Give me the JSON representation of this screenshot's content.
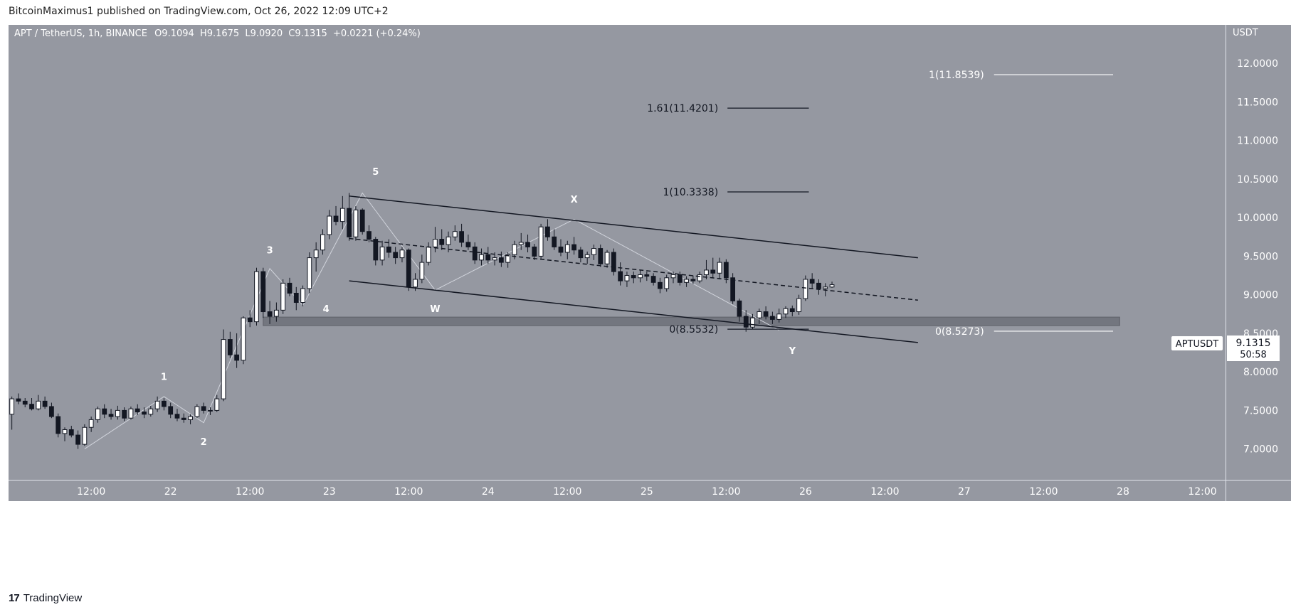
{
  "header": {
    "publisher_line": "BitcoinMaximus1 published on TradingView.com, Oct 26, 2022 12:09 UTC+2"
  },
  "footer": {
    "brand": "TradingView",
    "logo_glyph": "17"
  },
  "colors": {
    "chart_bg": "#9598a1",
    "axis_bg": "#9598a1",
    "candle_up": "#ffffff",
    "candle_down": "#131722",
    "channel": "#131722",
    "wave_line": "#d1d4dc",
    "target_white": "#ffffff",
    "target_dark": "#131722",
    "support_zone": "#6f727b"
  },
  "chart_data": {
    "type": "candlestick",
    "title": "APT / TetherUS, 1h, BINANCE",
    "ohlc_bar": {
      "o_label": "O",
      "o": "9.1094",
      "h_label": "H",
      "h": "9.1675",
      "l_label": "L",
      "l": "9.0920",
      "c_label": "C",
      "c": "9.1315",
      "change": "+0.0221 (+0.24%)"
    },
    "currency": "USDT",
    "ylim": [
      6.6,
      12.5
    ],
    "y_ticks": [
      "12.0000",
      "11.5000",
      "11.0000",
      "10.5000",
      "10.0000",
      "9.5000",
      "9.0000",
      "8.5000",
      "8.0000",
      "7.5000",
      "7.0000"
    ],
    "x_ticks": [
      {
        "label": "12:00",
        "t": 12
      },
      {
        "label": "22",
        "t": 24
      },
      {
        "label": "12:00",
        "t": 36
      },
      {
        "label": "23",
        "t": 48
      },
      {
        "label": "12:00",
        "t": 60
      },
      {
        "label": "24",
        "t": 72
      },
      {
        "label": "12:00",
        "t": 84
      },
      {
        "label": "25",
        "t": 96
      },
      {
        "label": "12:00",
        "t": 108
      },
      {
        "label": "26",
        "t": 120
      },
      {
        "label": "12:00",
        "t": 132
      },
      {
        "label": "27",
        "t": 144
      },
      {
        "label": "12:00",
        "t": 156
      },
      {
        "label": "28",
        "t": 168
      },
      {
        "label": "12:00",
        "t": 180
      }
    ],
    "x_range_hours": [
      -0.5,
      183.5
    ],
    "price_label": {
      "symbol": "APTUSDT",
      "price": "9.1315",
      "countdown": "50:58",
      "value": 9.1315
    },
    "candles": [
      [
        7.45,
        7.68,
        7.25,
        7.65
      ],
      [
        7.65,
        7.72,
        7.58,
        7.62
      ],
      [
        7.62,
        7.66,
        7.54,
        7.58
      ],
      [
        7.58,
        7.66,
        7.5,
        7.52
      ],
      [
        7.52,
        7.7,
        7.5,
        7.62
      ],
      [
        7.62,
        7.68,
        7.52,
        7.55
      ],
      [
        7.55,
        7.6,
        7.4,
        7.42
      ],
      [
        7.42,
        7.46,
        7.15,
        7.2
      ],
      [
        7.2,
        7.28,
        7.1,
        7.25
      ],
      [
        7.25,
        7.3,
        7.15,
        7.18
      ],
      [
        7.18,
        7.24,
        7.0,
        7.06
      ],
      [
        7.06,
        7.32,
        7.04,
        7.28
      ],
      [
        7.28,
        7.42,
        7.22,
        7.38
      ],
      [
        7.38,
        7.55,
        7.34,
        7.52
      ],
      [
        7.52,
        7.58,
        7.4,
        7.45
      ],
      [
        7.45,
        7.52,
        7.38,
        7.42
      ],
      [
        7.42,
        7.56,
        7.38,
        7.5
      ],
      [
        7.5,
        7.54,
        7.36,
        7.4
      ],
      [
        7.4,
        7.55,
        7.38,
        7.52
      ],
      [
        7.52,
        7.58,
        7.44,
        7.48
      ],
      [
        7.48,
        7.54,
        7.4,
        7.45
      ],
      [
        7.45,
        7.56,
        7.42,
        7.52
      ],
      [
        7.52,
        7.68,
        7.48,
        7.62
      ],
      [
        7.62,
        7.66,
        7.5,
        7.55
      ],
      [
        7.55,
        7.6,
        7.4,
        7.45
      ],
      [
        7.45,
        7.52,
        7.36,
        7.4
      ],
      [
        7.4,
        7.46,
        7.34,
        7.38
      ],
      [
        7.38,
        7.45,
        7.32,
        7.42
      ],
      [
        7.42,
        7.58,
        7.4,
        7.55
      ],
      [
        7.55,
        7.6,
        7.46,
        7.5
      ],
      [
        7.5,
        7.54,
        7.44,
        7.5
      ],
      [
        7.5,
        7.7,
        7.48,
        7.65
      ],
      [
        7.65,
        8.55,
        7.62,
        8.42
      ],
      [
        8.42,
        8.52,
        8.18,
        8.22
      ],
      [
        8.22,
        8.5,
        8.05,
        8.15
      ],
      [
        8.15,
        8.72,
        8.1,
        8.7
      ],
      [
        8.7,
        8.8,
        8.58,
        8.65
      ],
      [
        8.65,
        9.35,
        8.6,
        9.3
      ],
      [
        9.3,
        9.35,
        8.7,
        8.78
      ],
      [
        8.78,
        8.92,
        8.62,
        8.72
      ],
      [
        8.72,
        8.9,
        8.65,
        8.8
      ],
      [
        8.8,
        9.2,
        8.75,
        9.15
      ],
      [
        9.15,
        9.22,
        8.98,
        9.02
      ],
      [
        9.02,
        9.1,
        8.8,
        8.9
      ],
      [
        8.9,
        9.12,
        8.85,
        9.08
      ],
      [
        9.08,
        9.55,
        9.02,
        9.48
      ],
      [
        9.48,
        9.68,
        9.3,
        9.58
      ],
      [
        9.58,
        9.85,
        9.52,
        9.78
      ],
      [
        9.78,
        10.1,
        9.72,
        10.02
      ],
      [
        10.02,
        10.15,
        9.9,
        9.95
      ],
      [
        9.95,
        10.28,
        9.85,
        10.12
      ],
      [
        10.12,
        10.32,
        9.7,
        9.75
      ],
      [
        9.75,
        10.15,
        9.7,
        10.1
      ],
      [
        10.1,
        10.12,
        9.78,
        9.82
      ],
      [
        9.82,
        9.9,
        9.68,
        9.72
      ],
      [
        9.72,
        9.75,
        9.38,
        9.45
      ],
      [
        9.45,
        9.7,
        9.38,
        9.62
      ],
      [
        9.62,
        9.72,
        9.48,
        9.55
      ],
      [
        9.55,
        9.62,
        9.4,
        9.48
      ],
      [
        9.48,
        9.62,
        9.42,
        9.58
      ],
      [
        9.58,
        9.6,
        9.05,
        9.1
      ],
      [
        9.1,
        9.28,
        9.05,
        9.2
      ],
      [
        9.2,
        9.52,
        9.15,
        9.42
      ],
      [
        9.42,
        9.68,
        9.38,
        9.62
      ],
      [
        9.62,
        9.88,
        9.55,
        9.72
      ],
      [
        9.72,
        9.85,
        9.58,
        9.65
      ],
      [
        9.65,
        9.82,
        9.55,
        9.75
      ],
      [
        9.75,
        9.9,
        9.7,
        9.82
      ],
      [
        9.82,
        9.92,
        9.62,
        9.68
      ],
      [
        9.68,
        9.78,
        9.58,
        9.62
      ],
      [
        9.62,
        9.68,
        9.4,
        9.45
      ],
      [
        9.45,
        9.6,
        9.38,
        9.52
      ],
      [
        9.52,
        9.62,
        9.4,
        9.45
      ],
      [
        9.45,
        9.55,
        9.38,
        9.48
      ],
      [
        9.48,
        9.56,
        9.36,
        9.42
      ],
      [
        9.42,
        9.55,
        9.35,
        9.52
      ],
      [
        9.52,
        9.7,
        9.46,
        9.65
      ],
      [
        9.65,
        9.8,
        9.58,
        9.68
      ],
      [
        9.68,
        9.78,
        9.55,
        9.62
      ],
      [
        9.62,
        9.66,
        9.45,
        9.5
      ],
      [
        9.5,
        9.92,
        9.46,
        9.88
      ],
      [
        9.88,
        9.98,
        9.7,
        9.75
      ],
      [
        9.75,
        9.85,
        9.58,
        9.62
      ],
      [
        9.62,
        9.72,
        9.5,
        9.55
      ],
      [
        9.55,
        9.7,
        9.46,
        9.65
      ],
      [
        9.65,
        9.75,
        9.52,
        9.58
      ],
      [
        9.58,
        9.62,
        9.42,
        9.48
      ],
      [
        9.48,
        9.56,
        9.4,
        9.52
      ],
      [
        9.52,
        9.65,
        9.45,
        9.6
      ],
      [
        9.6,
        9.65,
        9.36,
        9.4
      ],
      [
        9.4,
        9.58,
        9.35,
        9.55
      ],
      [
        9.55,
        9.6,
        9.25,
        9.3
      ],
      [
        9.3,
        9.42,
        9.12,
        9.18
      ],
      [
        9.18,
        9.3,
        9.1,
        9.25
      ],
      [
        9.25,
        9.3,
        9.15,
        9.22
      ],
      [
        9.22,
        9.32,
        9.16,
        9.26
      ],
      [
        9.26,
        9.3,
        9.18,
        9.24
      ],
      [
        9.24,
        9.28,
        9.12,
        9.16
      ],
      [
        9.16,
        9.22,
        9.02,
        9.08
      ],
      [
        9.08,
        9.26,
        9.04,
        9.22
      ],
      [
        9.22,
        9.3,
        9.15,
        9.26
      ],
      [
        9.26,
        9.3,
        9.12,
        9.16
      ],
      [
        9.16,
        9.24,
        9.1,
        9.2
      ],
      [
        9.2,
        9.25,
        9.14,
        9.18
      ],
      [
        9.18,
        9.3,
        9.15,
        9.26
      ],
      [
        9.26,
        9.45,
        9.2,
        9.32
      ],
      [
        9.32,
        9.48,
        9.22,
        9.28
      ],
      [
        9.28,
        9.48,
        9.2,
        9.42
      ],
      [
        9.42,
        9.46,
        9.15,
        9.22
      ],
      [
        9.22,
        9.28,
        8.88,
        8.92
      ],
      [
        8.92,
        8.95,
        8.65,
        8.72
      ],
      [
        8.72,
        8.8,
        8.52,
        8.58
      ],
      [
        8.58,
        8.75,
        8.55,
        8.7
      ],
      [
        8.7,
        8.82,
        8.62,
        8.78
      ],
      [
        8.78,
        8.85,
        8.68,
        8.72
      ],
      [
        8.72,
        8.78,
        8.62,
        8.68
      ],
      [
        8.68,
        8.82,
        8.64,
        8.75
      ],
      [
        8.75,
        8.85,
        8.7,
        8.82
      ],
      [
        8.82,
        8.86,
        8.72,
        8.78
      ],
      [
        8.78,
        9.0,
        8.74,
        8.95
      ],
      [
        8.95,
        9.25,
        8.92,
        9.2
      ],
      [
        9.2,
        9.28,
        9.08,
        9.15
      ],
      [
        9.15,
        9.2,
        9.0,
        9.08
      ],
      [
        9.08,
        9.15,
        8.98,
        9.1
      ],
      [
        9.1,
        9.17,
        9.09,
        9.13
      ]
    ],
    "channel_lines": [
      {
        "name": "upper",
        "t0": 51,
        "p0": 10.28,
        "t1": 137,
        "p1": 9.48,
        "style": "solid"
      },
      {
        "name": "lower",
        "t0": 51,
        "p0": 9.18,
        "t1": 137,
        "p1": 8.38,
        "style": "solid"
      },
      {
        "name": "middle",
        "t0": 51,
        "p0": 9.73,
        "t1": 137,
        "p1": 8.93,
        "style": "dashed"
      }
    ],
    "support_zone": {
      "t0": 38,
      "t1": 167.5,
      "p_low": 8.6,
      "p_high": 8.71
    },
    "wave_path": [
      [
        11,
        7.0
      ],
      [
        23,
        7.68
      ],
      [
        29,
        7.34
      ],
      [
        39,
        9.34
      ],
      [
        44,
        8.86
      ],
      [
        53,
        10.32
      ],
      [
        64,
        9.06
      ],
      [
        85,
        9.98
      ],
      [
        116,
        8.54
      ]
    ],
    "wave_labels": [
      {
        "text": "1",
        "t": 23,
        "p": 7.94
      },
      {
        "text": "2",
        "t": 29,
        "p": 7.1
      },
      {
        "text": "3",
        "t": 39,
        "p": 9.58
      },
      {
        "text": "4",
        "t": 47.5,
        "p": 8.82
      },
      {
        "text": "5",
        "t": 55,
        "p": 10.6
      },
      {
        "text": "W",
        "t": 64,
        "p": 8.82
      },
      {
        "text": "X",
        "t": 85,
        "p": 10.24
      },
      {
        "text": "Y",
        "t": 118,
        "p": 8.28
      }
    ],
    "fib_targets": [
      {
        "label": "1(10.3338)",
        "p": 10.3338,
        "t0": 108.2,
        "t1": 120.5,
        "color": "dark",
        "label_right_t": 106.8
      },
      {
        "label": "1.61(11.4201)",
        "p": 11.4201,
        "t0": 108.2,
        "t1": 120.5,
        "color": "dark",
        "label_right_t": 106.8
      },
      {
        "label": "0(8.5532)",
        "p": 8.5532,
        "t0": 108.2,
        "t1": 120.5,
        "color": "dark",
        "label_right_t": 106.8
      },
      {
        "label": "1(11.8539)",
        "p": 11.8539,
        "t0": 148.5,
        "t1": 166.5,
        "color": "white",
        "label_right_t": 147.0
      },
      {
        "label": "0(8.5273)",
        "p": 8.5273,
        "t0": 148.5,
        "t1": 166.5,
        "color": "white",
        "label_right_t": 147.0
      }
    ]
  }
}
